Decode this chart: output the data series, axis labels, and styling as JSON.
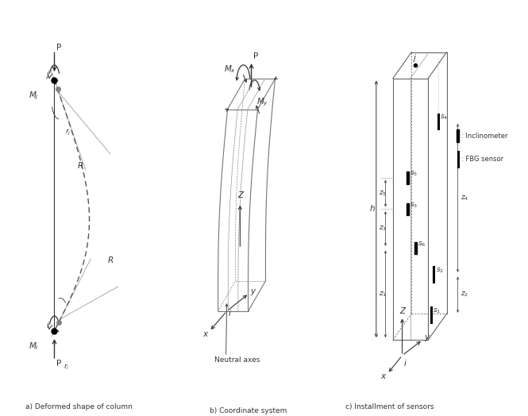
{
  "subtitle_a": "a) Deformed shape of column",
  "subtitle_b": "b) Coordinate system",
  "subtitle_c": "c) Installment of sensors",
  "bg_color": "#ffffff",
  "lc": "#333333",
  "dc": "#555555",
  "fs": 7.5,
  "fs_small": 6.5
}
